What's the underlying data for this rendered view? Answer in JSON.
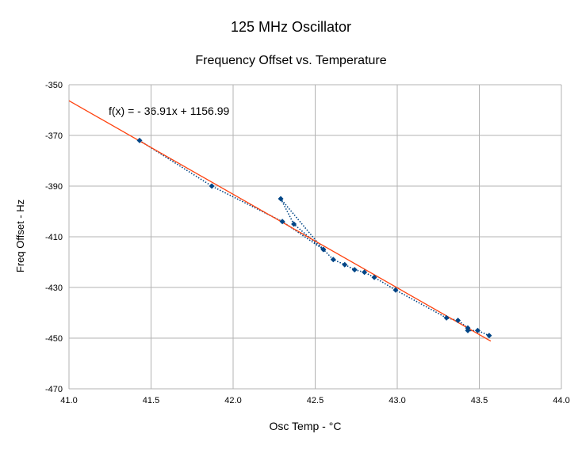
{
  "chart_data": {
    "type": "scatter",
    "title": "125 MHz Oscillator",
    "subtitle": "Frequency Offset vs. Temperature",
    "xlabel": "Osc Temp - °C",
    "ylabel": "Freq Offset - Hz",
    "xlim": [
      41.0,
      44.0
    ],
    "ylim": [
      -470,
      -350
    ],
    "xticks": [
      "41.0",
      "41.5",
      "42.0",
      "42.5",
      "43.0",
      "43.5",
      "44.0"
    ],
    "yticks": [
      "-350",
      "-370",
      "-390",
      "-410",
      "-430",
      "-450",
      "-470"
    ],
    "grid": true,
    "series": [
      {
        "color": "#004586",
        "line_style": "dotted",
        "points": [
          [
            41.43,
            -372
          ],
          [
            41.87,
            -390
          ],
          [
            42.3,
            -404
          ],
          [
            42.55,
            -415
          ],
          [
            42.29,
            -395
          ],
          [
            42.37,
            -405
          ],
          [
            42.55,
            -415
          ],
          [
            42.61,
            -419
          ],
          [
            42.68,
            -421
          ],
          [
            42.74,
            -423
          ],
          [
            42.8,
            -424
          ],
          [
            42.86,
            -426
          ],
          [
            42.99,
            -431
          ],
          [
            43.3,
            -442
          ],
          [
            43.37,
            -443
          ],
          [
            43.43,
            -446
          ],
          [
            43.43,
            -447
          ],
          [
            43.49,
            -447
          ],
          [
            43.56,
            -449
          ]
        ]
      }
    ],
    "trendline": {
      "color": "#ff420e",
      "slope": -36.91,
      "intercept": 1156.99,
      "x_range": [
        41.0,
        43.57
      ],
      "equation": "f(x) =  - 36.91x + 1156.99"
    }
  }
}
